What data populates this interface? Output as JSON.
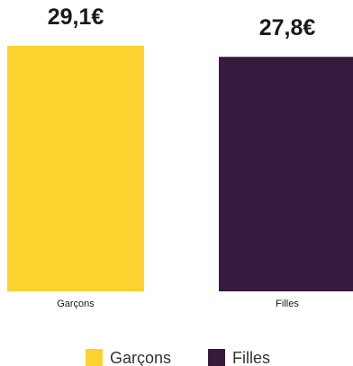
{
  "chart_data": {
    "type": "bar",
    "categories": [
      "Garçons",
      "Filles"
    ],
    "series": [
      {
        "values": [
          29.1,
          27.8
        ],
        "colors": [
          "#FCD32E",
          "#371A3E"
        ]
      }
    ],
    "data_labels": [
      "29,1€",
      "27,8€"
    ],
    "legend": {
      "position": "bottom",
      "items": [
        {
          "label": "Garçons",
          "color": "#FCD32E"
        },
        {
          "label": "Filles",
          "color": "#371A3E"
        }
      ]
    },
    "title": "",
    "xlabel": "",
    "ylabel": "",
    "ylim": [
      0,
      29.1
    ],
    "grid": false,
    "y_axis_visible": false
  }
}
